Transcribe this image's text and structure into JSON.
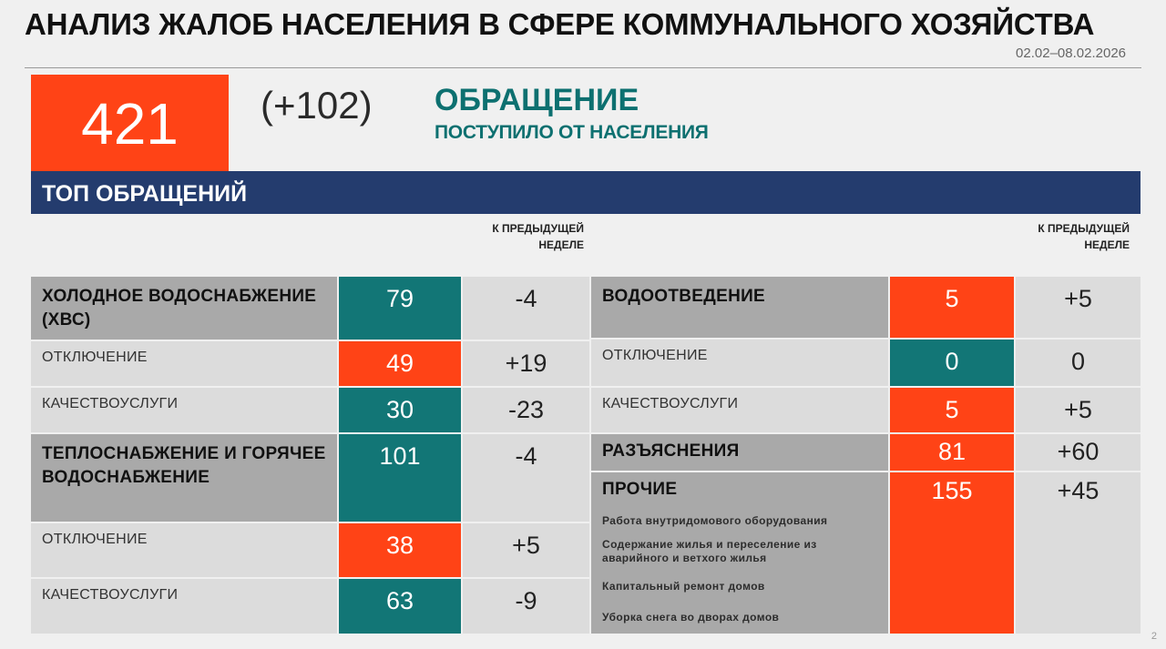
{
  "header": {
    "title": "АНАЛИЗ ЖАЛОБ НАСЕЛЕНИЯ В СФЕРЕ КОММУНАЛЬНОГО ХОЗЯЙСТВА",
    "date_range": "02.02–08.02.2026"
  },
  "summary": {
    "total": "421",
    "delta": "(+102)",
    "heading": "ОБРАЩЕНИЕ",
    "subheading": "ПОСТУПИЛО ОТ НАСЕЛЕНИЯ"
  },
  "top_bar": {
    "label": "ТОП ОБРАЩЕНИЙ"
  },
  "prev_week_header": {
    "line1": "К ПРЕДЫДУЩЕЙ",
    "line2": "НЕДЕЛЕ"
  },
  "left_table": [
    {
      "label": "ХОЛОДНОЕ ВОДОСНАБЖЕНИЕ (ХВС)",
      "value": "79",
      "change": "-4",
      "is_category": true,
      "color": "#127676"
    },
    {
      "label": "ОТКЛЮЧЕНИЕ",
      "value": "49",
      "change": "+19",
      "is_category": false,
      "color": "#ff4316"
    },
    {
      "label": "КАЧЕСТВОУСЛУГИ",
      "value": "30",
      "change": "-23",
      "is_category": false,
      "color": "#127676"
    },
    {
      "label": "ТЕПЛОСНАБЖЕНИЕ И ГОРЯЧЕЕ ВОДОСНАБЖЕНИЕ",
      "value": "101",
      "change": "-4",
      "is_category": true,
      "color": "#127676"
    },
    {
      "label": "ОТКЛЮЧЕНИЕ",
      "value": "38",
      "change": "+5",
      "is_category": false,
      "color": "#ff4316"
    },
    {
      "label": "КАЧЕСТВОУСЛУГИ",
      "value": "63",
      "change": "-9",
      "is_category": false,
      "color": "#127676"
    }
  ],
  "right_table": [
    {
      "label": "ВОДООТВЕДЕНИЕ",
      "value": "5",
      "change": "+5",
      "is_category": true,
      "color": "#ff4316"
    },
    {
      "label": "ОТКЛЮЧЕНИЕ",
      "value": "0",
      "change": "0",
      "is_category": false,
      "color": "#127676"
    },
    {
      "label": "КАЧЕСТВОУСЛУГИ",
      "value": "5",
      "change": "+5",
      "is_category": false,
      "color": "#ff4316"
    },
    {
      "label": "РАЗЪЯСНЕНИЯ",
      "value": "81",
      "change": "+60",
      "is_category": true,
      "color": "#ff4316"
    },
    {
      "label": "ПРОЧИЕ",
      "value": "155",
      "change": "+45",
      "is_category": true,
      "color": "#ff4316",
      "items": [
        "Работа внутридомового оборудования",
        "Содержание жилья и переселение из аварийного и ветхого жилья",
        "Капитальный ремонт домов",
        "Уборка снега во дворах домов"
      ]
    }
  ],
  "page_number": "2",
  "colors": {
    "accent_red": "#ff4316",
    "accent_teal": "#127676",
    "navy": "#243c6e",
    "heading_teal": "#0d7070"
  }
}
